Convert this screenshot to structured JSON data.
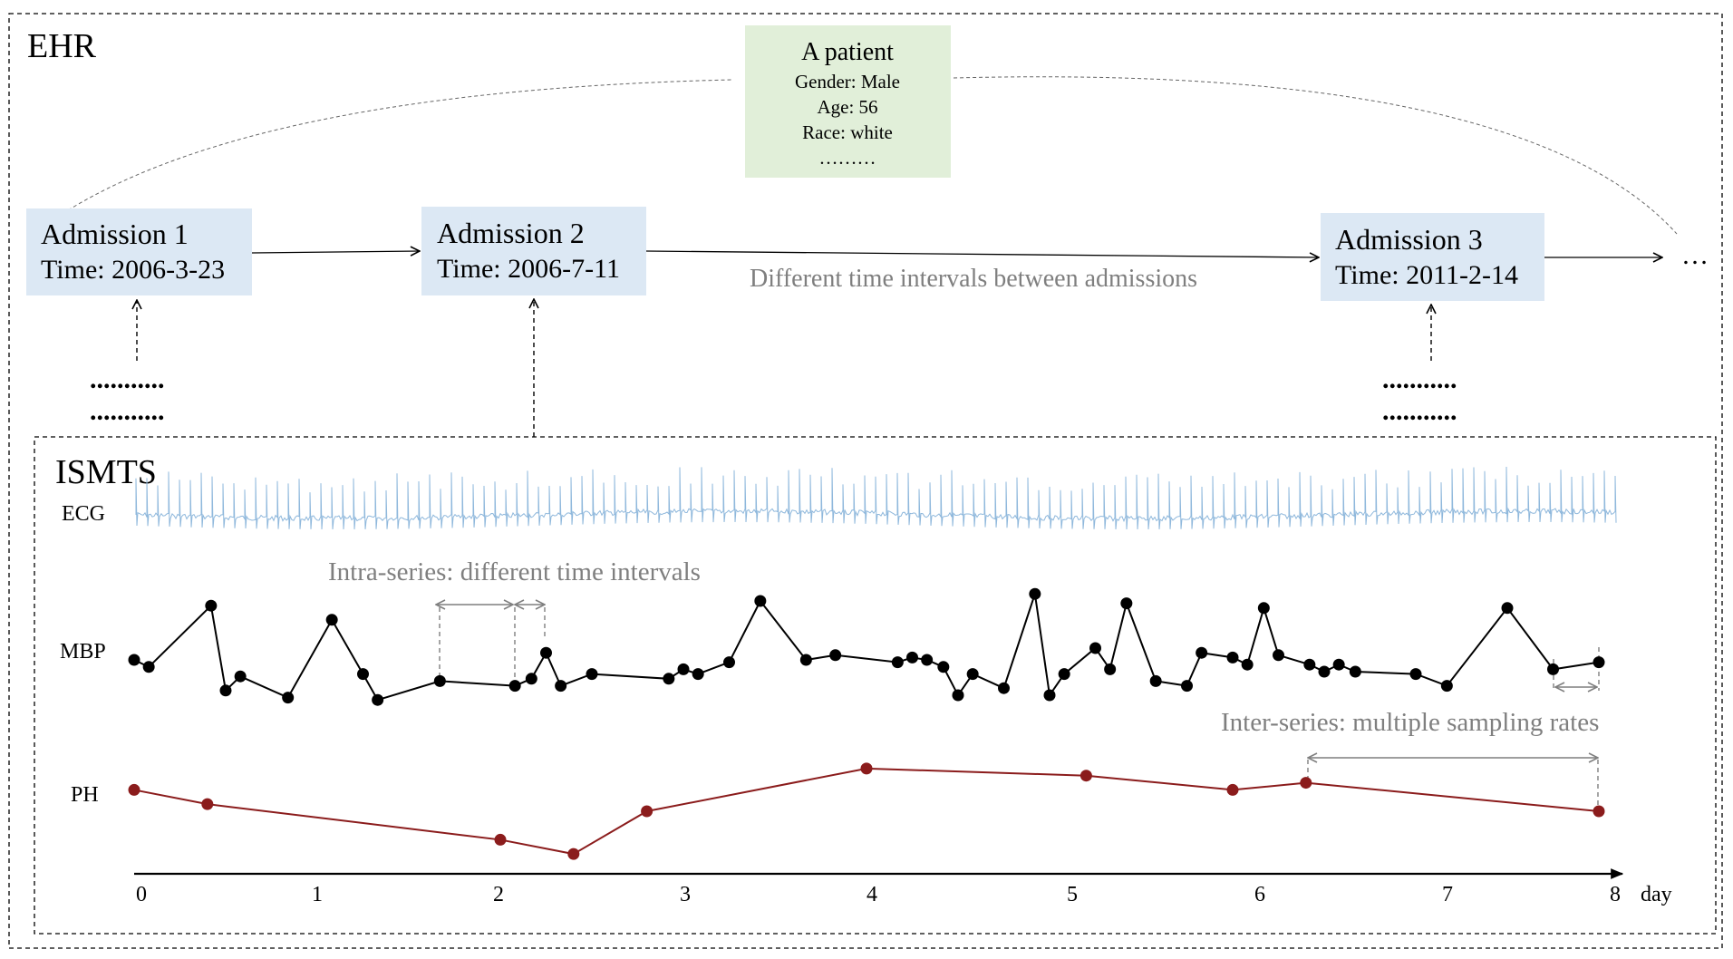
{
  "ehr": {
    "title": "EHR",
    "patient": {
      "title": "A patient",
      "gender": "Gender: Male",
      "age": "Age: 56",
      "race": "Race: white",
      "more": "………"
    },
    "admissions": [
      {
        "title": "Admission 1",
        "time": "Time: 2006-3-23"
      },
      {
        "title": "Admission 2",
        "time": "Time: 2006-7-11"
      },
      {
        "title": "Admission 3",
        "time": "Time: 2011-2-14"
      }
    ],
    "trailing": "…",
    "interval_note": "Different time intervals between admissions",
    "dots": "..........."
  },
  "ismts": {
    "title": "ISMTS",
    "series_labels": {
      "ecg": "ECG",
      "mbp": "MBP",
      "ph": "PH"
    },
    "intra_note": "Intra-series: different time intervals",
    "inter_note": "Inter-series: multiple sampling rates",
    "axis_unit": "day",
    "axis_ticks": [
      "0",
      "1",
      "2",
      "3",
      "4",
      "5",
      "6",
      "7",
      "8"
    ]
  },
  "colors": {
    "admission_box": "#dce8f4",
    "patient_box": "#e1efd9",
    "ecg": "#8fb8dc",
    "mbp": "#000000",
    "ph": "#8b1c1c",
    "annotation": "#7f7f7f"
  },
  "chart_data": {
    "type": "line",
    "xlim": [
      0,
      8
    ],
    "series": [
      {
        "name": "MBP",
        "x": [
          0.0,
          0.08,
          0.42,
          0.5,
          0.58,
          0.84,
          1.08,
          1.25,
          1.33,
          1.67,
          2.08,
          2.17,
          2.25,
          2.33,
          2.5,
          2.92,
          3.0,
          3.08,
          3.25,
          3.42,
          3.67,
          3.83,
          4.17,
          4.25,
          4.33,
          4.42,
          4.5,
          4.58,
          4.75,
          4.92,
          5.0,
          5.08,
          5.25,
          5.33,
          5.42,
          5.58,
          5.75,
          5.83,
          6.0,
          6.08,
          6.17,
          6.25,
          6.42,
          6.5,
          6.58,
          6.67,
          7.0,
          7.17,
          7.5,
          7.75,
          8.0
        ],
        "values": [
          95,
          92,
          118,
          82,
          88,
          79,
          112,
          89,
          78,
          86,
          84,
          87,
          98,
          84,
          89,
          87,
          91,
          89,
          94,
          120,
          95,
          97,
          94,
          96,
          95,
          92,
          80,
          89,
          83,
          123,
          80,
          89,
          100,
          91,
          119,
          86,
          84,
          98,
          96,
          93,
          117,
          97,
          93,
          90,
          93,
          90,
          89,
          84,
          117,
          91,
          94
        ]
      },
      {
        "name": "PH",
        "x": [
          0.0,
          0.4,
          2.0,
          2.4,
          2.8,
          4.0,
          5.2,
          6.0,
          6.4,
          8.0
        ],
        "values": [
          7.38,
          7.36,
          7.31,
          7.29,
          7.35,
          7.41,
          7.4,
          7.38,
          7.39,
          7.35
        ]
      }
    ]
  }
}
